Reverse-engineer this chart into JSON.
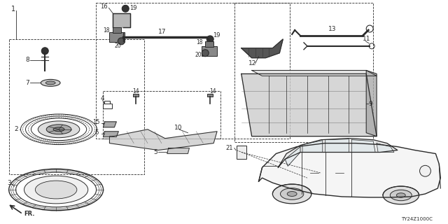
{
  "bg_color": "#ffffff",
  "line_color": "#2a2a2a",
  "diagram_code": "TY24Z1000C",
  "fig_width": 6.4,
  "fig_height": 3.2,
  "dpi": 100
}
